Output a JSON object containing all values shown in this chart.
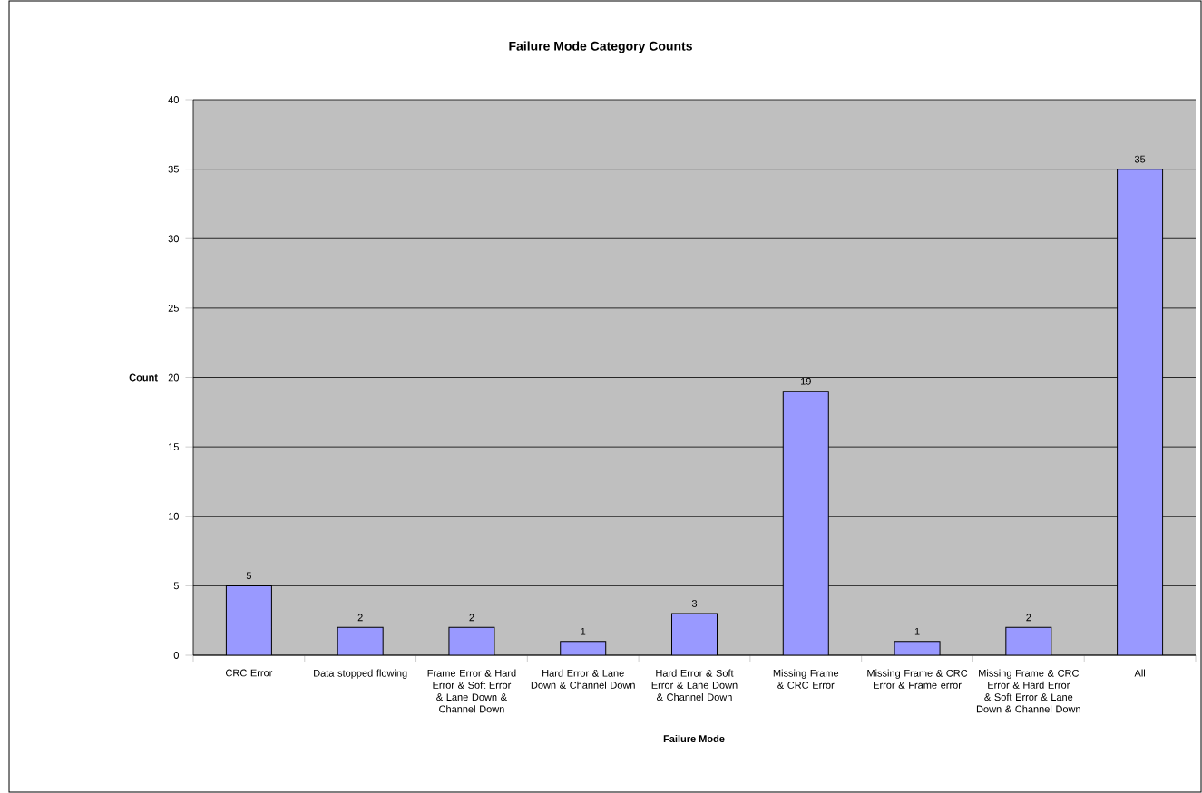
{
  "chart_data": {
    "type": "bar",
    "title": "Failure Mode Category Counts",
    "xlabel": "Failure Mode",
    "ylabel": "Count",
    "categories": [
      "CRC Error",
      "Data stopped flowing",
      "Frame Error & Hard Error & Soft Error & Lane Down & Channel Down",
      "Hard Error & Lane Down & Channel Down",
      "Hard Error & Soft Error & Lane Down & Channel Down",
      "Missing Frame & CRC Error",
      "Missing Frame & CRC Error & Frame error",
      "Missing Frame & CRC Error & Hard Error & Soft Error & Lane Down & Channel Down",
      "All"
    ],
    "values": [
      5,
      2,
      2,
      1,
      3,
      19,
      1,
      2,
      35
    ],
    "color": "#9999ff",
    "ylim": [
      0,
      40
    ],
    "yticks": [
      0,
      5,
      10,
      15,
      20,
      25,
      30,
      35,
      40
    ],
    "grid": "y",
    "data_labels": true
  }
}
